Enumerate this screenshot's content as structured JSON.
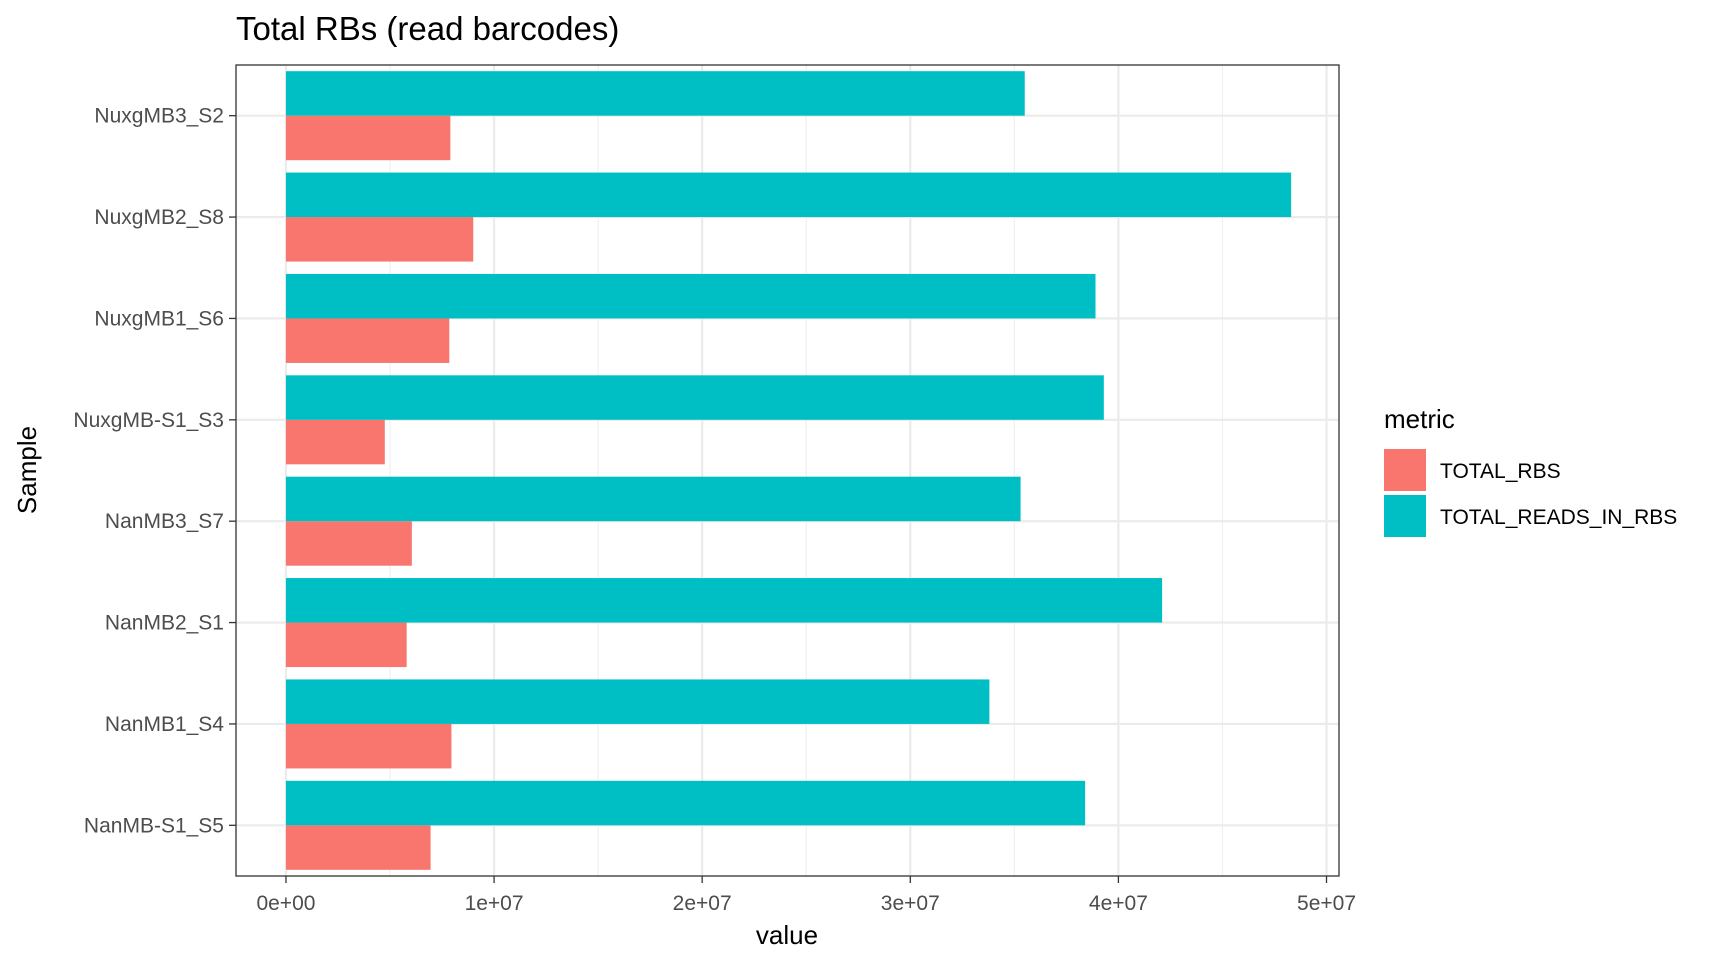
{
  "chart_data": {
    "type": "bar",
    "orientation": "horizontal",
    "title": "Total RBs (read barcodes)",
    "xlabel": "value",
    "ylabel": "Sample",
    "categories": [
      "NuxgMB3_S2",
      "NuxgMB2_S8",
      "NuxgMB1_S6",
      "NuxgMB-S1_S3",
      "NanMB3_S7",
      "NanMB2_S1",
      "NanMB1_S4",
      "NanMB-S1_S5"
    ],
    "series": [
      {
        "name": "TOTAL_RBS",
        "color": "#F8766D",
        "values": [
          7900000,
          9000000,
          7850000,
          4750000,
          6050000,
          5800000,
          7950000,
          6950000
        ]
      },
      {
        "name": "TOTAL_READS_IN_RBS",
        "color": "#00BFC4",
        "values": [
          35500000,
          48300000,
          38900000,
          39300000,
          35300000,
          42100000,
          33800000,
          38400000
        ]
      }
    ],
    "xlim": [
      -2400000,
      50600000
    ],
    "x_ticks": [
      0,
      10000000,
      20000000,
      30000000,
      40000000,
      50000000
    ],
    "x_tick_labels": [
      "0e+00",
      "1e+07",
      "2e+07",
      "3e+07",
      "4e+07",
      "5e+07"
    ],
    "legend_title": "metric",
    "legend_position": "right",
    "grid": true
  }
}
